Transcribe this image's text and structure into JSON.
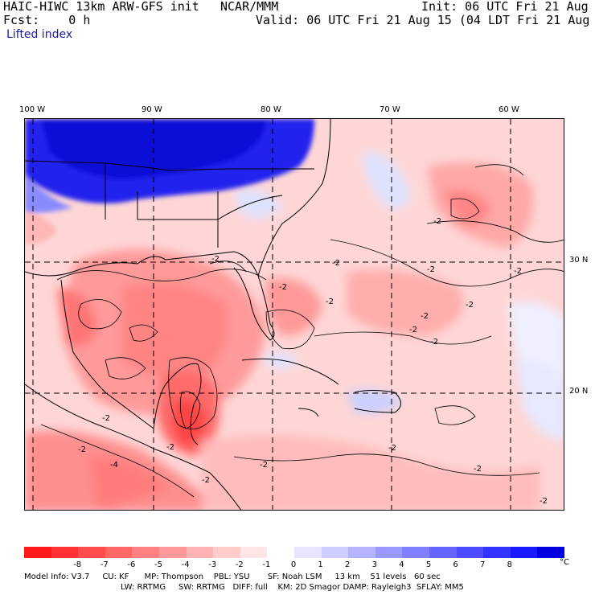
{
  "header": {
    "model": "HAIC-HIWC 13km ARW-GFS init",
    "org": "NCAR/MMM",
    "init": "Init: 06 UTC Fri 21 Aug 15",
    "fcst": "Fcst:    0 h",
    "valid": "Valid: 06 UTC Fri 21 Aug 15 (04 LDT Fri 21 Aug 15)",
    "field": "Lifted index"
  },
  "map": {
    "lon_labels": [
      "100 W",
      "90 W",
      "80 W",
      "70 W",
      "60 W"
    ],
    "lat_labels": [
      "30 N",
      "20 N"
    ],
    "contour_labels": [
      "-2",
      "-2",
      "-2",
      "-2",
      "-2",
      "-2",
      "-2",
      "-2",
      "-2",
      "-2",
      "-2",
      "-2",
      "-2",
      "-4",
      "-2",
      "-2",
      "-2",
      "-2",
      "-2",
      "-2"
    ]
  },
  "colorbar": {
    "colors": [
      "#ff1a1a",
      "#ff3333",
      "#ff4d4d",
      "#ff6666",
      "#ff8080",
      "#ff9999",
      "#ffb3b3",
      "#ffcccc",
      "#ffe6e6",
      "#ffffff",
      "#e6e6ff",
      "#ccccff",
      "#b3b3ff",
      "#9999ff",
      "#8080ff",
      "#6666ff",
      "#4d4dff",
      "#3333ff",
      "#1a1aff",
      "#0000e0"
    ],
    "labels": [
      "-8",
      "-7",
      "-6",
      "-5",
      "-4",
      "-3",
      "-2",
      "-1",
      "0",
      "1",
      "2",
      "3",
      "4",
      "5",
      "6",
      "7",
      "8"
    ],
    "unit": "°C"
  },
  "info": {
    "line1": "Model Info: V3.7     CU: KF      MP: Thompson    PBL: YSU       SF: Noah LSM     13 km    51 levels   60 sec",
    "line2": "LW: RRTMG     SW: RRTMG   DIFF: full    KM: 2D Smagor DAMP: Rayleigh3  SFLAY: MM5"
  }
}
